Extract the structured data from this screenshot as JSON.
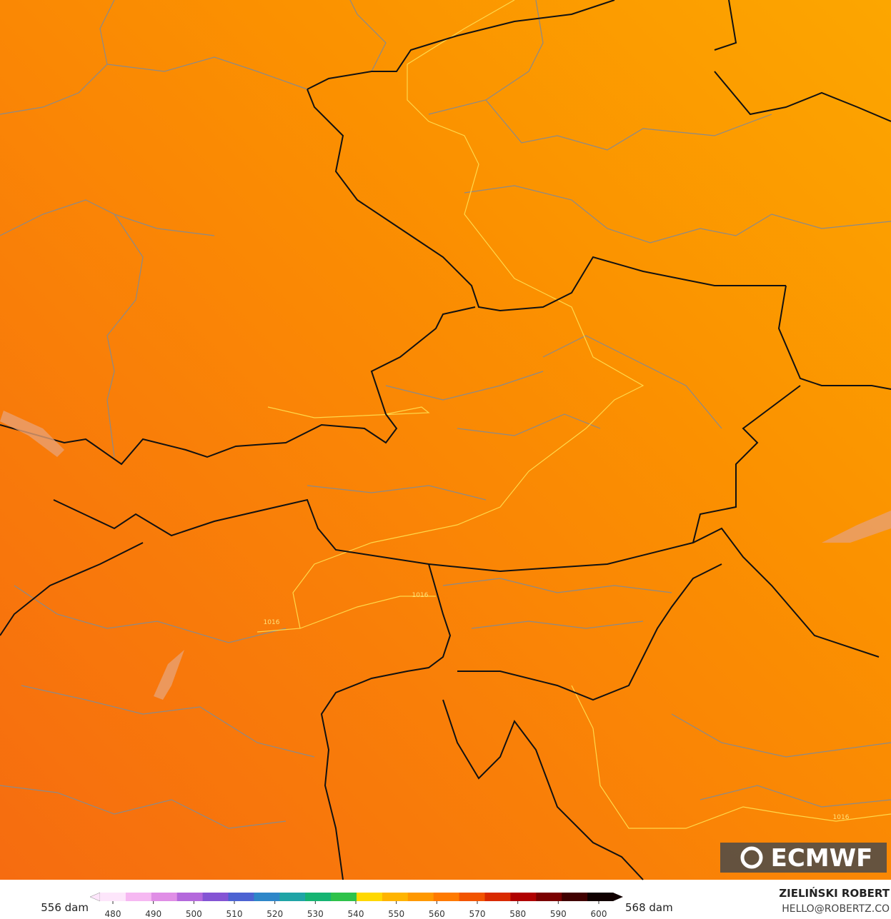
{
  "map": {
    "contour_labels": [
      "1016",
      "1016",
      "1016"
    ]
  },
  "logo": "ECMWF",
  "colorbar": {
    "min_label": "556 dam",
    "max_label": "568 dam",
    "ticks": [
      480,
      490,
      500,
      510,
      520,
      530,
      540,
      550,
      560,
      570,
      580,
      590,
      600
    ],
    "colors": [
      "#fde6fb",
      "#f6b8f2",
      "#e08ee6",
      "#b468dc",
      "#8454d4",
      "#4c62d2",
      "#2e86c8",
      "#1fa4a6",
      "#15b472",
      "#2ec24a",
      "#ffd800",
      "#ffb400",
      "#ff9800",
      "#ff7a00",
      "#f25400",
      "#d92a00",
      "#b00000",
      "#7a0000",
      "#400000",
      "#100000"
    ]
  },
  "credit": {
    "name": "ZIELIŃSKI ROBERT",
    "email": "HELLO@ROBERTZ.CO"
  }
}
